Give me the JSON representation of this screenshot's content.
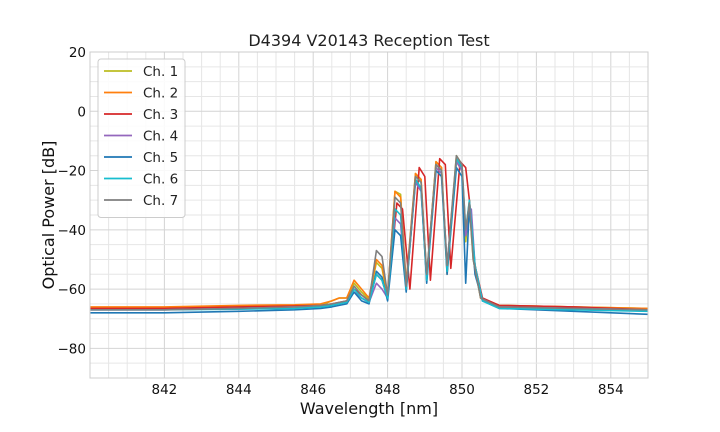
{
  "chart_data": {
    "type": "line",
    "title": "D4394 V20143 Reception Test",
    "xlabel": "Wavelength [nm]",
    "ylabel": "Optical Power [dB]",
    "xlim": [
      840,
      855
    ],
    "ylim": [
      -90,
      20
    ],
    "xticks": [
      842,
      844,
      846,
      848,
      850,
      852,
      854
    ],
    "yticks": [
      20,
      0,
      -20,
      -40,
      -60,
      -80
    ],
    "grid": true,
    "minor_grid": true,
    "legend": "top-left",
    "series": [
      {
        "name": "Ch. 1",
        "color": "#bcbd22",
        "points": [
          [
            840,
            -66.5
          ],
          [
            842,
            -66.5
          ],
          [
            844,
            -66
          ],
          [
            845.5,
            -65.7
          ],
          [
            846.2,
            -65.5
          ],
          [
            846.5,
            -64
          ],
          [
            846.7,
            -63
          ],
          [
            846.9,
            -63
          ],
          [
            847.1,
            -58
          ],
          [
            847.3,
            -61
          ],
          [
            847.5,
            -63.5
          ],
          [
            847.7,
            -51
          ],
          [
            847.85,
            -53
          ],
          [
            848.0,
            -63
          ],
          [
            848.2,
            -27
          ],
          [
            848.35,
            -28
          ],
          [
            848.5,
            -60
          ],
          [
            848.75,
            -21
          ],
          [
            848.9,
            -24
          ],
          [
            849.05,
            -56
          ],
          [
            849.3,
            -17
          ],
          [
            849.45,
            -19
          ],
          [
            849.6,
            -53
          ],
          [
            849.85,
            -15
          ],
          [
            850.0,
            -18
          ],
          [
            850.1,
            -44
          ],
          [
            850.2,
            -32
          ],
          [
            850.3,
            -50
          ],
          [
            850.5,
            -63
          ],
          [
            851,
            -65.5
          ],
          [
            853,
            -66
          ],
          [
            855,
            -66.5
          ]
        ]
      },
      {
        "name": "Ch. 2",
        "color": "#ff7f0e",
        "points": [
          [
            840,
            -66
          ],
          [
            842,
            -66
          ],
          [
            844,
            -65.5
          ],
          [
            845.5,
            -65.3
          ],
          [
            846.2,
            -65
          ],
          [
            846.5,
            -64
          ],
          [
            846.7,
            -63
          ],
          [
            846.9,
            -63
          ],
          [
            847.1,
            -57
          ],
          [
            847.3,
            -60
          ],
          [
            847.5,
            -63
          ],
          [
            847.7,
            -50
          ],
          [
            847.85,
            -52
          ],
          [
            848.0,
            -62
          ],
          [
            848.2,
            -27
          ],
          [
            848.35,
            -29
          ],
          [
            848.5,
            -58
          ],
          [
            848.75,
            -21
          ],
          [
            848.9,
            -23
          ],
          [
            849.05,
            -56
          ],
          [
            849.3,
            -17
          ],
          [
            849.45,
            -19
          ],
          [
            849.6,
            -55
          ],
          [
            849.85,
            -17
          ],
          [
            850.0,
            -20
          ],
          [
            850.1,
            -42
          ],
          [
            850.2,
            -30
          ],
          [
            850.3,
            -48
          ],
          [
            850.5,
            -63
          ],
          [
            851,
            -65.5
          ],
          [
            853,
            -66
          ],
          [
            855,
            -66.5
          ]
        ]
      },
      {
        "name": "Ch. 3",
        "color": "#d62728",
        "points": [
          [
            840,
            -66.5
          ],
          [
            842,
            -66.5
          ],
          [
            844,
            -66
          ],
          [
            845.5,
            -65.7
          ],
          [
            846.2,
            -65.5
          ],
          [
            846.5,
            -65
          ],
          [
            846.7,
            -64.5
          ],
          [
            846.9,
            -64
          ],
          [
            847.1,
            -60
          ],
          [
            847.3,
            -62
          ],
          [
            847.5,
            -64
          ],
          [
            847.7,
            -55
          ],
          [
            847.85,
            -57
          ],
          [
            848.0,
            -63
          ],
          [
            848.25,
            -31
          ],
          [
            848.4,
            -33
          ],
          [
            848.6,
            -60
          ],
          [
            848.85,
            -19
          ],
          [
            849.0,
            -22
          ],
          [
            849.15,
            -57
          ],
          [
            849.4,
            -16
          ],
          [
            849.55,
            -18
          ],
          [
            849.7,
            -53
          ],
          [
            849.95,
            -17
          ],
          [
            850.1,
            -19
          ],
          [
            850.2,
            -30
          ],
          [
            850.35,
            -52
          ],
          [
            850.55,
            -63
          ],
          [
            851,
            -65.5
          ],
          [
            853,
            -66
          ],
          [
            855,
            -67
          ]
        ]
      },
      {
        "name": "Ch. 4",
        "color": "#9467bd",
        "points": [
          [
            840,
            -67
          ],
          [
            842,
            -67
          ],
          [
            844,
            -66.5
          ],
          [
            845.5,
            -66
          ],
          [
            846.2,
            -66
          ],
          [
            846.5,
            -65.5
          ],
          [
            846.7,
            -65
          ],
          [
            846.9,
            -64.5
          ],
          [
            847.1,
            -61
          ],
          [
            847.3,
            -63
          ],
          [
            847.5,
            -64.5
          ],
          [
            847.7,
            -58
          ],
          [
            847.85,
            -60
          ],
          [
            848.0,
            -63
          ],
          [
            848.2,
            -36
          ],
          [
            848.35,
            -38
          ],
          [
            848.5,
            -60
          ],
          [
            848.75,
            -24
          ],
          [
            848.9,
            -27
          ],
          [
            849.05,
            -57
          ],
          [
            849.3,
            -19
          ],
          [
            849.45,
            -21
          ],
          [
            849.6,
            -52
          ],
          [
            849.85,
            -17
          ],
          [
            850.0,
            -20
          ],
          [
            850.1,
            -42
          ],
          [
            850.25,
            -33
          ],
          [
            850.35,
            -52
          ],
          [
            850.55,
            -64
          ],
          [
            851,
            -66
          ],
          [
            853,
            -66.5
          ],
          [
            855,
            -67
          ]
        ]
      },
      {
        "name": "Ch. 5",
        "color": "#1f77b4",
        "points": [
          [
            840,
            -68
          ],
          [
            842,
            -68
          ],
          [
            844,
            -67.5
          ],
          [
            845.5,
            -67
          ],
          [
            846.2,
            -66.5
          ],
          [
            846.5,
            -66
          ],
          [
            846.7,
            -65.5
          ],
          [
            846.9,
            -65
          ],
          [
            847.1,
            -61
          ],
          [
            847.3,
            -64
          ],
          [
            847.5,
            -65
          ],
          [
            847.7,
            -54
          ],
          [
            847.85,
            -56
          ],
          [
            848.0,
            -64
          ],
          [
            848.2,
            -40
          ],
          [
            848.35,
            -42
          ],
          [
            848.5,
            -61
          ],
          [
            848.75,
            -23
          ],
          [
            848.9,
            -26
          ],
          [
            849.05,
            -58
          ],
          [
            849.3,
            -20
          ],
          [
            849.45,
            -22
          ],
          [
            849.6,
            -55
          ],
          [
            849.85,
            -19
          ],
          [
            850.0,
            -22
          ],
          [
            850.1,
            -58
          ],
          [
            850.2,
            -32
          ],
          [
            850.35,
            -55
          ],
          [
            850.55,
            -64
          ],
          [
            851,
            -66.5
          ],
          [
            853,
            -67.5
          ],
          [
            855,
            -68.5
          ]
        ]
      },
      {
        "name": "Ch. 6",
        "color": "#17becf",
        "points": [
          [
            840,
            -67
          ],
          [
            842,
            -67
          ],
          [
            844,
            -66.8
          ],
          [
            845.5,
            -66.5
          ],
          [
            846.2,
            -66
          ],
          [
            846.5,
            -65.5
          ],
          [
            846.7,
            -65
          ],
          [
            846.9,
            -64.5
          ],
          [
            847.1,
            -60
          ],
          [
            847.3,
            -63
          ],
          [
            847.5,
            -64.5
          ],
          [
            847.7,
            -55
          ],
          [
            847.85,
            -57
          ],
          [
            848.0,
            -63
          ],
          [
            848.2,
            -33
          ],
          [
            848.35,
            -35
          ],
          [
            848.5,
            -60
          ],
          [
            848.75,
            -23
          ],
          [
            848.9,
            -26
          ],
          [
            849.05,
            -57
          ],
          [
            849.3,
            -18
          ],
          [
            849.45,
            -20
          ],
          [
            849.6,
            -54
          ],
          [
            849.85,
            -16
          ],
          [
            850.0,
            -19
          ],
          [
            850.1,
            -40
          ],
          [
            850.2,
            -30
          ],
          [
            850.35,
            -52
          ],
          [
            850.55,
            -64
          ],
          [
            851,
            -66.5
          ],
          [
            853,
            -67
          ],
          [
            855,
            -67.5
          ]
        ]
      },
      {
        "name": "Ch. 7",
        "color": "#7f7f7f",
        "points": [
          [
            840,
            -67
          ],
          [
            842,
            -67
          ],
          [
            844,
            -66.5
          ],
          [
            845.5,
            -66
          ],
          [
            846.2,
            -65.5
          ],
          [
            846.5,
            -65
          ],
          [
            846.7,
            -64.5
          ],
          [
            846.9,
            -64
          ],
          [
            847.1,
            -59
          ],
          [
            847.3,
            -62
          ],
          [
            847.5,
            -64
          ],
          [
            847.7,
            -47
          ],
          [
            847.85,
            -49
          ],
          [
            848.0,
            -62
          ],
          [
            848.2,
            -29
          ],
          [
            848.35,
            -31
          ],
          [
            848.5,
            -59
          ],
          [
            848.75,
            -22
          ],
          [
            848.9,
            -24
          ],
          [
            849.05,
            -55
          ],
          [
            849.3,
            -18
          ],
          [
            849.45,
            -20
          ],
          [
            849.6,
            -52
          ],
          [
            849.85,
            -15
          ],
          [
            850.0,
            -18
          ],
          [
            850.1,
            -40
          ],
          [
            850.2,
            -31
          ],
          [
            850.3,
            -50
          ],
          [
            850.5,
            -63
          ],
          [
            851,
            -66
          ],
          [
            853,
            -66.5
          ],
          [
            855,
            -67
          ]
        ]
      }
    ]
  }
}
